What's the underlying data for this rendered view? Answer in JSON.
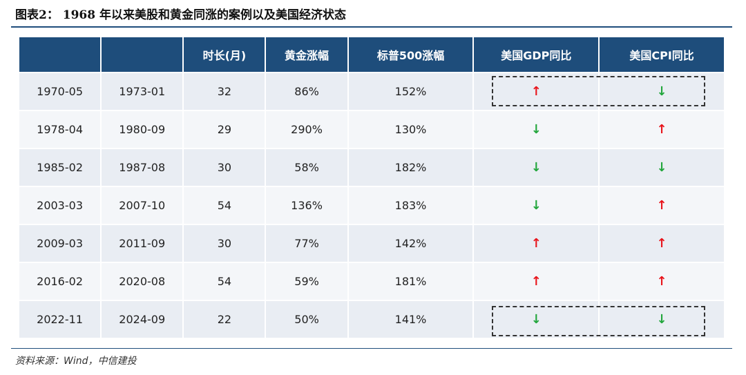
{
  "title": "图表2：  1968 年以来美股和黄金同涨的案例以及美国经济状态",
  "table": {
    "headers": [
      "",
      "",
      "时长(月)",
      "黄金涨幅",
      "标普500涨幅",
      "美国GDP同比",
      "美国CPI同比"
    ],
    "rows": [
      {
        "start": "1970-05",
        "end": "1973-01",
        "months": "32",
        "gold": "86%",
        "sp500": "152%",
        "gdp": "up",
        "cpi": "down"
      },
      {
        "start": "1978-04",
        "end": "1980-09",
        "months": "29",
        "gold": "290%",
        "sp500": "130%",
        "gdp": "down",
        "cpi": "up"
      },
      {
        "start": "1985-02",
        "end": "1987-08",
        "months": "30",
        "gold": "58%",
        "sp500": "182%",
        "gdp": "down",
        "cpi": "down"
      },
      {
        "start": "2003-03",
        "end": "2007-10",
        "months": "54",
        "gold": "136%",
        "sp500": "183%",
        "gdp": "down",
        "cpi": "up"
      },
      {
        "start": "2009-03",
        "end": "2011-09",
        "months": "30",
        "gold": "77%",
        "sp500": "142%",
        "gdp": "up",
        "cpi": "up"
      },
      {
        "start": "2016-02",
        "end": "2020-08",
        "months": "54",
        "gold": "59%",
        "sp500": "181%",
        "gdp": "up",
        "cpi": "up"
      },
      {
        "start": "2022-11",
        "end": "2024-09",
        "months": "22",
        "gold": "50%",
        "sp500": "141%",
        "gdp": "down",
        "cpi": "down"
      }
    ],
    "arrow_glyphs": {
      "up": "↑",
      "down": "↓"
    },
    "colors": {
      "header_bg": "#1e4d7b",
      "up": "#e8141b",
      "down": "#22a63c",
      "highlight_text": "#e8141b"
    }
  },
  "source": "资料来源：Wind，中信建投"
}
